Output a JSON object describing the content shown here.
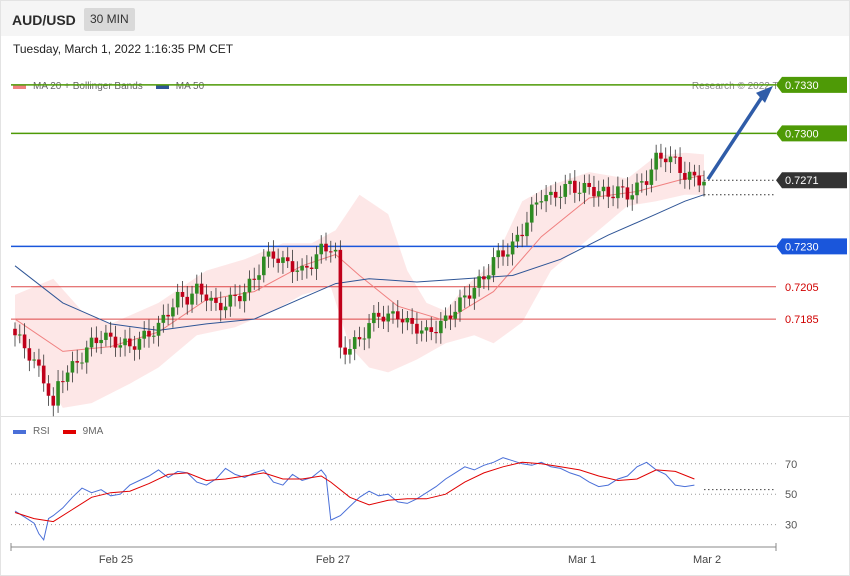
{
  "header": {
    "symbol": "AUD/USD",
    "timeframe": "30 MIN"
  },
  "datetime": "Tuesday, March 1, 2022 1:16:35 PM CET",
  "copyright": "Research © 2022 Trading Central",
  "legend_main": [
    {
      "label": "MA 20 + Bollinger Bands",
      "color": "#f08080"
    },
    {
      "label": "MA 50",
      "color": "#2f5596"
    }
  ],
  "legend_rsi": [
    {
      "label": "RSI",
      "color": "#4a6fd8"
    },
    {
      "label": "9MA",
      "color": "#e00000"
    }
  ],
  "chart_data": [
    {
      "type": "candlestick",
      "symbol": "AUD/USD",
      "timeframe": "30 MIN",
      "ylim": [
        0.7125,
        0.7338
      ],
      "x_ticks": [
        "Feb 25",
        "Feb 27",
        "Mar 1",
        "Mar 2"
      ],
      "last_price": 0.7271,
      "levels": [
        {
          "value": 0.733,
          "label": "0.7330",
          "kind": "resistance",
          "color": "#4e9a06"
        },
        {
          "value": 0.73,
          "label": "0.7300",
          "kind": "resistance",
          "color": "#4e9a06"
        },
        {
          "value": 0.7271,
          "label": "0.7271",
          "kind": "last",
          "color": "#333333"
        },
        {
          "value": 0.723,
          "label": "0.7230",
          "kind": "pivot",
          "color": "#1a56db"
        },
        {
          "value": 0.7205,
          "label": "0.7205",
          "kind": "support",
          "color": "#d00000"
        },
        {
          "value": 0.7185,
          "label": "0.7185",
          "kind": "support",
          "color": "#d00000"
        }
      ],
      "forecast_arrow": {
        "from": 0.7271,
        "to": 0.733
      },
      "close_path": [
        [
          0,
          0.7175
        ],
        [
          2,
          0.7168
        ],
        [
          4,
          0.7158
        ],
        [
          6,
          0.7148
        ],
        [
          7,
          0.714
        ],
        [
          8,
          0.7128
        ],
        [
          9,
          0.7145
        ],
        [
          10,
          0.715
        ],
        [
          12,
          0.7155
        ],
        [
          14,
          0.7162
        ],
        [
          16,
          0.717
        ],
        [
          18,
          0.7175
        ],
        [
          20,
          0.7172
        ],
        [
          22,
          0.717
        ],
        [
          24,
          0.7168
        ],
        [
          26,
          0.7172
        ],
        [
          28,
          0.7176
        ],
        [
          30,
          0.718
        ],
        [
          32,
          0.719
        ],
        [
          34,
          0.7198
        ],
        [
          36,
          0.7198
        ],
        [
          38,
          0.7203
        ],
        [
          40,
          0.72
        ],
        [
          42,
          0.7192
        ],
        [
          44,
          0.7195
        ],
        [
          46,
          0.7198
        ],
        [
          48,
          0.7202
        ],
        [
          50,
          0.721
        ],
        [
          52,
          0.7222
        ],
        [
          54,
          0.7225
        ],
        [
          56,
          0.722
        ],
        [
          58,
          0.7218
        ],
        [
          60,
          0.7214
        ],
        [
          62,
          0.722
        ],
        [
          64,
          0.7228
        ],
        [
          66,
          0.723
        ],
        [
          67,
          0.7225
        ],
        [
          68,
          0.7165
        ],
        [
          70,
          0.7168
        ],
        [
          72,
          0.7172
        ],
        [
          74,
          0.7182
        ],
        [
          76,
          0.7188
        ],
        [
          78,
          0.7186
        ],
        [
          80,
          0.7188
        ],
        [
          82,
          0.7182
        ],
        [
          84,
          0.718
        ],
        [
          86,
          0.7176
        ],
        [
          88,
          0.718
        ],
        [
          90,
          0.7184
        ],
        [
          92,
          0.7192
        ],
        [
          94,
          0.7198
        ],
        [
          96,
          0.7205
        ],
        [
          98,
          0.721
        ],
        [
          100,
          0.7222
        ],
        [
          102,
          0.7226
        ],
        [
          104,
          0.723
        ],
        [
          106,
          0.724
        ],
        [
          108,
          0.7252
        ],
        [
          110,
          0.7262
        ],
        [
          112,
          0.726
        ],
        [
          114,
          0.7264
        ],
        [
          116,
          0.7268
        ],
        [
          118,
          0.7265
        ],
        [
          120,
          0.7266
        ],
        [
          122,
          0.7264
        ],
        [
          124,
          0.7262
        ],
        [
          126,
          0.7265
        ],
        [
          128,
          0.7262
        ],
        [
          130,
          0.7266
        ],
        [
          132,
          0.7272
        ],
        [
          134,
          0.7284
        ],
        [
          136,
          0.7286
        ],
        [
          138,
          0.7282
        ],
        [
          140,
          0.7274
        ],
        [
          142,
          0.7272
        ],
        [
          144,
          0.7271
        ]
      ],
      "ma20_path": [
        [
          0,
          0.7185
        ],
        [
          10,
          0.7165
        ],
        [
          20,
          0.7168
        ],
        [
          30,
          0.7177
        ],
        [
          40,
          0.7197
        ],
        [
          50,
          0.7202
        ],
        [
          60,
          0.7218
        ],
        [
          67,
          0.7225
        ],
        [
          72,
          0.7212
        ],
        [
          80,
          0.7193
        ],
        [
          90,
          0.7184
        ],
        [
          100,
          0.7202
        ],
        [
          110,
          0.7236
        ],
        [
          120,
          0.726
        ],
        [
          130,
          0.7264
        ],
        [
          140,
          0.7272
        ],
        [
          144,
          0.7274
        ]
      ],
      "ma50_path": [
        [
          0,
          0.7218
        ],
        [
          10,
          0.7195
        ],
        [
          20,
          0.7182
        ],
        [
          30,
          0.7178
        ],
        [
          40,
          0.7182
        ],
        [
          50,
          0.7185
        ],
        [
          60,
          0.7198
        ],
        [
          67,
          0.7207
        ],
        [
          74,
          0.721
        ],
        [
          84,
          0.7208
        ],
        [
          94,
          0.721
        ],
        [
          104,
          0.7212
        ],
        [
          114,
          0.7222
        ],
        [
          124,
          0.7237
        ],
        [
          134,
          0.725
        ],
        [
          140,
          0.7258
        ],
        [
          144,
          0.7262
        ]
      ],
      "bb_upper_path": [
        [
          0,
          0.72
        ],
        [
          8,
          0.721
        ],
        [
          14,
          0.719
        ],
        [
          20,
          0.7182
        ],
        [
          30,
          0.7195
        ],
        [
          40,
          0.7215
        ],
        [
          48,
          0.7222
        ],
        [
          56,
          0.7232
        ],
        [
          62,
          0.7232
        ],
        [
          67,
          0.724
        ],
        [
          72,
          0.7262
        ],
        [
          78,
          0.725
        ],
        [
          82,
          0.7215
        ],
        [
          86,
          0.7195
        ],
        [
          90,
          0.719
        ],
        [
          94,
          0.7205
        ],
        [
          100,
          0.722
        ],
        [
          106,
          0.7258
        ],
        [
          112,
          0.7268
        ],
        [
          120,
          0.7276
        ],
        [
          128,
          0.7272
        ],
        [
          134,
          0.7286
        ],
        [
          140,
          0.7288
        ],
        [
          144,
          0.7287
        ]
      ],
      "bb_lower_path": [
        [
          0,
          0.7175
        ],
        [
          6,
          0.715
        ],
        [
          10,
          0.713
        ],
        [
          16,
          0.7133
        ],
        [
          24,
          0.7145
        ],
        [
          30,
          0.7155
        ],
        [
          38,
          0.7175
        ],
        [
          46,
          0.718
        ],
        [
          54,
          0.719
        ],
        [
          60,
          0.72
        ],
        [
          66,
          0.7205
        ],
        [
          70,
          0.7168
        ],
        [
          74,
          0.7155
        ],
        [
          78,
          0.7152
        ],
        [
          84,
          0.716
        ],
        [
          90,
          0.717
        ],
        [
          96,
          0.7175
        ],
        [
          100,
          0.717
        ],
        [
          106,
          0.7183
        ],
        [
          112,
          0.7215
        ],
        [
          120,
          0.7235
        ],
        [
          128,
          0.7255
        ],
        [
          134,
          0.7258
        ],
        [
          140,
          0.7262
        ],
        [
          144,
          0.7262
        ]
      ]
    },
    {
      "type": "line",
      "name": "RSI",
      "ylim": [
        16,
        83
      ],
      "y_ticks": [
        70,
        50,
        30
      ],
      "series": [
        {
          "name": "RSI",
          "color": "#4a6fd8",
          "points": [
            [
              0,
              39
            ],
            [
              2,
              35
            ],
            [
              4,
              31
            ],
            [
              5,
              24
            ],
            [
              6,
              20
            ],
            [
              7,
              34
            ],
            [
              8,
              36
            ],
            [
              10,
              41
            ],
            [
              12,
              48
            ],
            [
              14,
              54
            ],
            [
              16,
              51
            ],
            [
              18,
              53
            ],
            [
              20,
              49
            ],
            [
              22,
              50
            ],
            [
              24,
              56
            ],
            [
              26,
              59
            ],
            [
              28,
              62
            ],
            [
              30,
              66
            ],
            [
              32,
              61
            ],
            [
              34,
              65
            ],
            [
              36,
              64
            ],
            [
              38,
              58
            ],
            [
              40,
              56
            ],
            [
              42,
              60
            ],
            [
              44,
              67
            ],
            [
              46,
              63
            ],
            [
              48,
              61
            ],
            [
              50,
              64
            ],
            [
              52,
              66
            ],
            [
              54,
              58
            ],
            [
              56,
              56
            ],
            [
              58,
              63
            ],
            [
              60,
              59
            ],
            [
              62,
              61
            ],
            [
              64,
              66
            ],
            [
              65,
              62
            ],
            [
              66,
              33
            ],
            [
              68,
              36
            ],
            [
              70,
              42
            ],
            [
              72,
              48
            ],
            [
              74,
              52
            ],
            [
              76,
              49
            ],
            [
              78,
              50
            ],
            [
              80,
              45
            ],
            [
              82,
              44
            ],
            [
              84,
              47
            ],
            [
              86,
              51
            ],
            [
              88,
              55
            ],
            [
              90,
              60
            ],
            [
              92,
              64
            ],
            [
              94,
              68
            ],
            [
              96,
              66
            ],
            [
              98,
              69
            ],
            [
              100,
              71
            ],
            [
              102,
              74
            ],
            [
              104,
              72
            ],
            [
              106,
              70
            ],
            [
              108,
              69
            ],
            [
              110,
              71
            ],
            [
              112,
              68
            ],
            [
              114,
              67
            ],
            [
              116,
              64
            ],
            [
              118,
              62
            ],
            [
              120,
              58
            ],
            [
              122,
              55
            ],
            [
              124,
              56
            ],
            [
              126,
              60
            ],
            [
              128,
              62
            ],
            [
              130,
              68
            ],
            [
              132,
              71
            ],
            [
              134,
              66
            ],
            [
              136,
              63
            ],
            [
              138,
              56
            ],
            [
              140,
              55
            ],
            [
              142,
              56
            ]
          ]
        },
        {
          "name": "9MA",
          "color": "#e00000",
          "points": [
            [
              0,
              38
            ],
            [
              4,
              34
            ],
            [
              8,
              32
            ],
            [
              12,
              40
            ],
            [
              16,
              48
            ],
            [
              20,
              51
            ],
            [
              24,
              52
            ],
            [
              28,
              57
            ],
            [
              32,
              63
            ],
            [
              36,
              64
            ],
            [
              40,
              59
            ],
            [
              44,
              60
            ],
            [
              48,
              62
            ],
            [
              52,
              64
            ],
            [
              56,
              60
            ],
            [
              60,
              60
            ],
            [
              64,
              62
            ],
            [
              66,
              58
            ],
            [
              70,
              48
            ],
            [
              74,
              43
            ],
            [
              78,
              46
            ],
            [
              82,
              47
            ],
            [
              86,
              47
            ],
            [
              90,
              50
            ],
            [
              94,
              58
            ],
            [
              98,
              64
            ],
            [
              102,
              68
            ],
            [
              106,
              71
            ],
            [
              110,
              70
            ],
            [
              114,
              68
            ],
            [
              118,
              66
            ],
            [
              122,
              62
            ],
            [
              126,
              59
            ],
            [
              130,
              60
            ],
            [
              134,
              66
            ],
            [
              138,
              65
            ],
            [
              142,
              60
            ]
          ]
        }
      ]
    }
  ]
}
